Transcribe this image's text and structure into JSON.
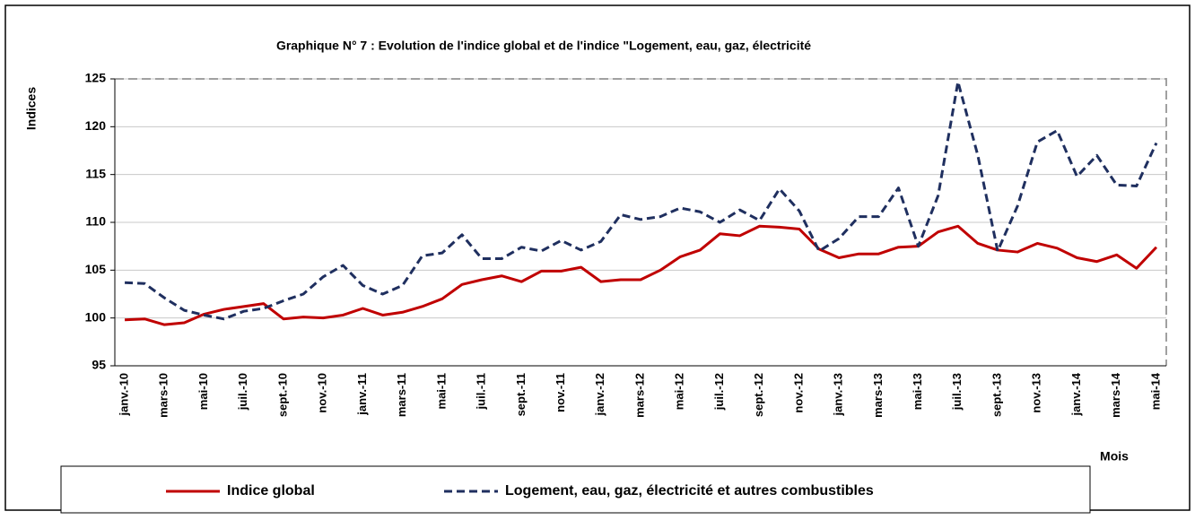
{
  "chart_data": {
    "type": "line",
    "title": "Graphique N° 7 : Evolution de l'indice global  et de l'indice \"Logement, eau, gaz, électricité",
    "y_label": "Indices",
    "x_label": "Mois",
    "categories": [
      "janv.-10",
      null,
      "mars-10",
      null,
      "mai-10",
      null,
      "juil.-10",
      null,
      "sept.-10",
      null,
      "nov.-10",
      null,
      "janv.-11",
      null,
      "mars-11",
      null,
      "mai-11",
      null,
      "juil.-11",
      null,
      "sept.-11",
      null,
      "nov.-11",
      null,
      "janv.-12",
      null,
      "mars-12",
      null,
      "mai-12",
      null,
      "juil.-12",
      null,
      "sept.-12",
      null,
      "nov.-12",
      null,
      "janv.-13",
      null,
      "mars-13",
      null,
      "mai-13",
      null,
      "juil.-13",
      null,
      "sept.-13",
      null,
      "nov.-13",
      null,
      "janv.-14",
      null,
      "mars-14",
      null,
      "mai-14"
    ],
    "series": [
      {
        "name": "Indice global",
        "color": "#c00000",
        "dash": false,
        "values": [
          99.8,
          99.9,
          99.3,
          99.5,
          100.4,
          100.9,
          101.2,
          101.5,
          99.9,
          100.1,
          100.0,
          100.3,
          101.0,
          100.3,
          100.6,
          101.2,
          102.0,
          103.5,
          104.0,
          104.4,
          103.8,
          104.9,
          104.9,
          105.3,
          103.8,
          104.0,
          104.0,
          105.0,
          106.4,
          107.1,
          108.8,
          108.6,
          109.6,
          109.5,
          109.3,
          107.2,
          106.3,
          106.7,
          106.7,
          107.4,
          107.5,
          109.0,
          109.6,
          107.8,
          107.1,
          106.9,
          107.8,
          107.3,
          106.3,
          105.9,
          106.6,
          105.2,
          107.4
        ]
      },
      {
        "name": "Logement, eau, gaz, électricité et autres combustibles",
        "color": "#1f2f5f",
        "dash": true,
        "values": [
          103.7,
          103.6,
          102.1,
          100.8,
          100.3,
          99.9,
          100.7,
          101.0,
          101.8,
          102.5,
          104.3,
          105.5,
          103.4,
          102.5,
          103.4,
          106.5,
          106.8,
          108.7,
          106.2,
          106.2,
          107.4,
          107.0,
          108.1,
          107.1,
          108.0,
          110.8,
          110.3,
          110.6,
          111.5,
          111.1,
          110.0,
          111.3,
          110.2,
          113.5,
          111.2,
          107.0,
          108.3,
          110.6,
          110.6,
          113.6,
          107.5,
          112.8,
          124.7,
          117.0,
          107.0,
          111.7,
          118.4,
          119.6,
          114.8,
          117.0,
          113.9,
          113.8,
          118.3
        ]
      }
    ],
    "ylim": [
      95,
      125
    ],
    "yticks": [
      95,
      100,
      105,
      110,
      115,
      120,
      125
    ],
    "grid": true
  }
}
